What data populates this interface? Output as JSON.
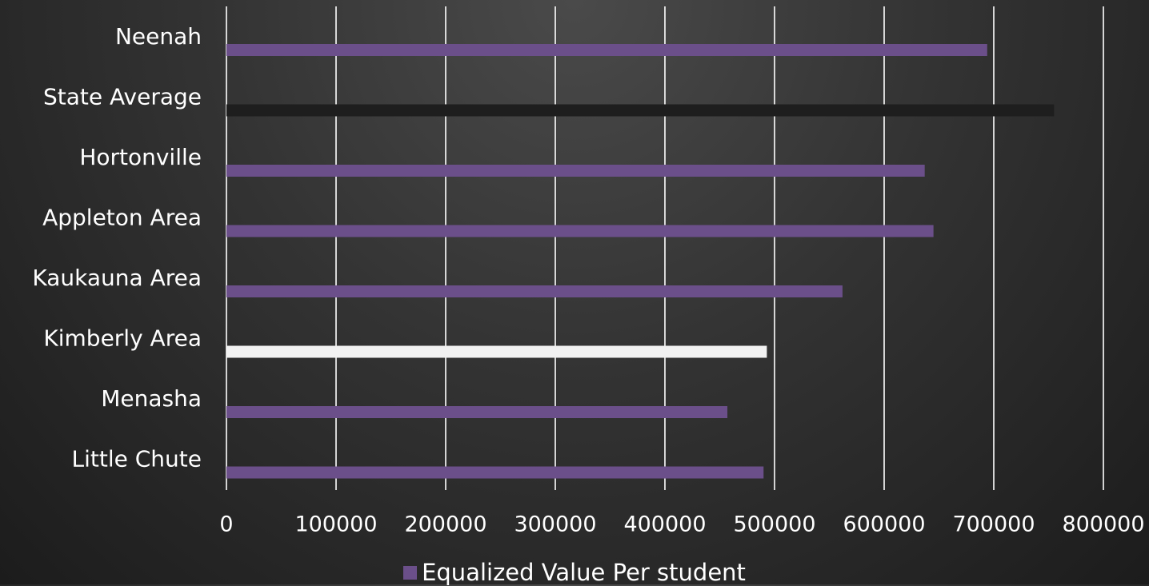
{
  "chart_data": {
    "type": "bar",
    "orientation": "horizontal",
    "categories": [
      "Neenah",
      "State Average",
      "Hortonville",
      "Appleton Area",
      "Kaukauna Area",
      "Kimberly Area",
      "Menasha",
      "Little Chute"
    ],
    "series": [
      {
        "name": "Equalized Value Per student",
        "values": [
          694000,
          755000,
          637000,
          645000,
          562000,
          493000,
          457000,
          490000
        ],
        "color": "#6b4f8a",
        "point_colors": [
          "#6b4f8a",
          "#1e1e1e",
          "#6b4f8a",
          "#6b4f8a",
          "#6b4f8a",
          "#f2f2f2",
          "#6b4f8a",
          "#6b4f8a"
        ]
      }
    ],
    "xlim": [
      0,
      800000
    ],
    "xticks": [
      "0",
      "100000",
      "200000",
      "300000",
      "400000",
      "500000",
      "600000",
      "700000",
      "800000"
    ],
    "grid": true,
    "legend_position": "bottom"
  },
  "colors": {
    "gridline": "#ffffff",
    "text": "#ffffff"
  }
}
